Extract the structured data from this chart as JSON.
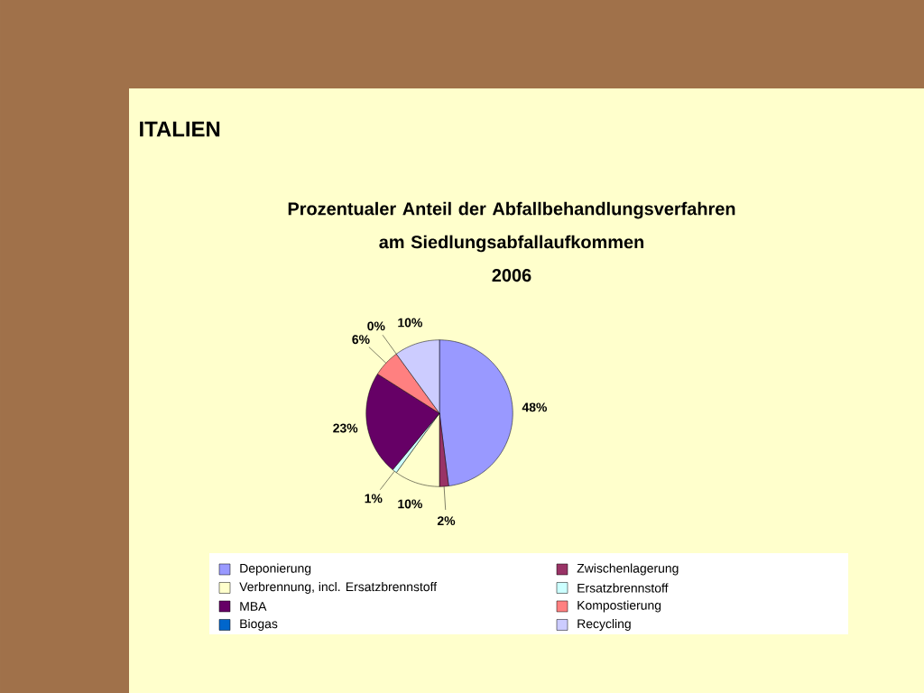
{
  "chart_data": {
    "type": "pie",
    "title": "Prozentualer Anteil der Abfallbehandlungsverfahren\nam Siedlungsabfallaufkommen\n2006",
    "annotations": [
      "ITALIEN"
    ],
    "categories": [
      "Deponierung",
      "Zwischenlagerung",
      "Verbrennung, incl. Ersatzbrennstoff",
      "Ersatzbrennstoff",
      "MBA",
      "Kompostierung",
      "Biogas",
      "Recycling"
    ],
    "values": [
      48,
      2,
      10,
      1,
      23,
      6,
      0,
      10
    ],
    "value_labels": [
      "48%",
      "2%",
      "10%",
      "1%",
      "23%",
      "6%",
      "0%",
      "10%"
    ],
    "colors": [
      "#9999ff",
      "#993366",
      "#ffffcc",
      "#ccffff",
      "#660066",
      "#ff8080",
      "#0066cc",
      "#ccccff"
    ],
    "legend": "bottom"
  }
}
